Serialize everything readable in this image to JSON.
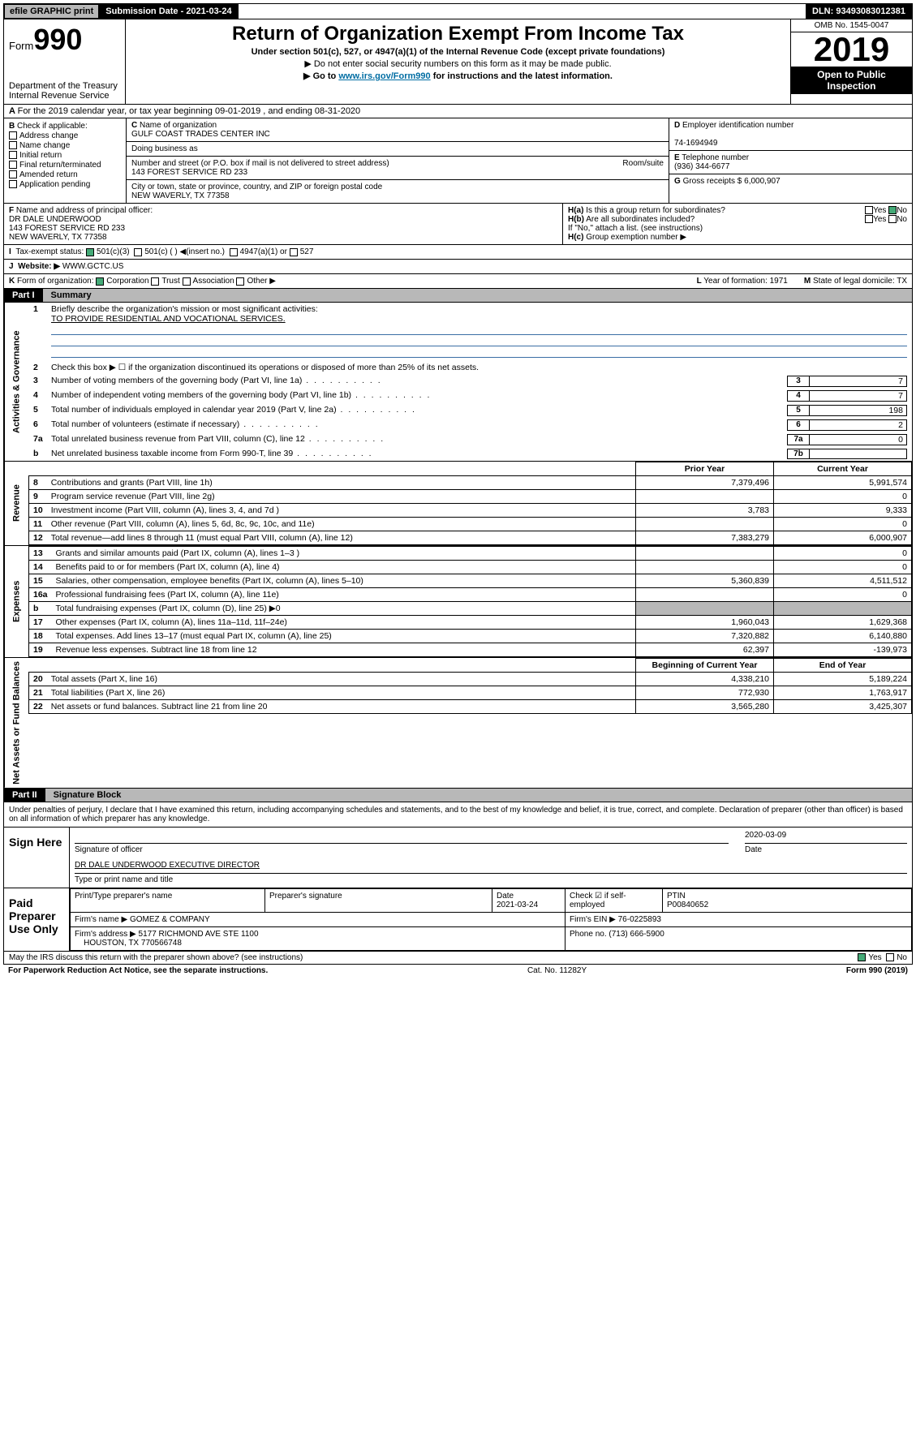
{
  "topbar": {
    "efile": "efile GRAPHIC print",
    "submission": "Submission Date - 2021-03-24",
    "dln": "DLN: 93493083012381"
  },
  "header": {
    "form_label": "Form",
    "form_number": "990",
    "dept": "Department of the Treasury",
    "irs": "Internal Revenue Service",
    "title": "Return of Organization Exempt From Income Tax",
    "sub1": "Under section 501(c), 527, or 4947(a)(1) of the Internal Revenue Code (except private foundations)",
    "sub2": "▶ Do not enter social security numbers on this form as it may be made public.",
    "sub3_pre": "▶ Go to ",
    "sub3_link": "www.irs.gov/Form990",
    "sub3_post": " for instructions and the latest information.",
    "omb": "OMB No. 1545-0047",
    "year": "2019",
    "public": "Open to Public Inspection"
  },
  "A": {
    "text": "For the 2019 calendar year, or tax year beginning 09-01-2019 , and ending 08-31-2020"
  },
  "B": {
    "label": "Check if applicable:",
    "items": [
      "Address change",
      "Name change",
      "Initial return",
      "Final return/terminated",
      "Amended return",
      "Application pending"
    ]
  },
  "C": {
    "name_label": "Name of organization",
    "name": "GULF COAST TRADES CENTER INC",
    "dba_label": "Doing business as",
    "addr_label": "Number and street (or P.O. box if mail is not delivered to street address)",
    "room_label": "Room/suite",
    "addr": "143 FOREST SERVICE RD 233",
    "city_label": "City or town, state or province, country, and ZIP or foreign postal code",
    "city": "NEW WAVERLY, TX 77358"
  },
  "D": {
    "label": "Employer identification number",
    "value": "74-1694949"
  },
  "E": {
    "label": "Telephone number",
    "value": "(936) 344-6677"
  },
  "G": {
    "label": "Gross receipts $",
    "value": "6,000,907"
  },
  "F": {
    "label": "Name and address of principal officer:",
    "name": "DR DALE UNDERWOOD",
    "addr1": "143 FOREST SERVICE RD 233",
    "addr2": "NEW WAVERLY, TX 77358"
  },
  "H": {
    "a": "Is this a group return for subordinates?",
    "b": "Are all subordinates included?",
    "b2": "If \"No,\" attach a list. (see instructions)",
    "c": "Group exemption number ▶"
  },
  "taxexempt": {
    "label": "Tax-exempt status:",
    "c501c3": "501(c)(3)",
    "c501c": "501(c) ( ) ◀(insert no.)",
    "c4947": "4947(a)(1) or",
    "c527": "527"
  },
  "J": {
    "label": "Website: ▶",
    "value": "WWW.GCTC.US"
  },
  "K": {
    "label": "Form of organization:",
    "corp": "Corporation",
    "trust": "Trust",
    "assoc": "Association",
    "other": "Other ▶",
    "L": "Year of formation: 1971",
    "M": "State of legal domicile: TX"
  },
  "partI": {
    "tab": "Part I",
    "label": "Summary"
  },
  "sum": {
    "q1_label": "Briefly describe the organization's mission or most significant activities:",
    "q1_value": "TO PROVIDE RESIDENTIAL AND VOCATIONAL SERVICES.",
    "q2": "Check this box ▶ ☐ if the organization discontinued its operations or disposed of more than 25% of its net assets.",
    "rows": [
      {
        "n": "3",
        "t": "Number of voting members of the governing body (Part VI, line 1a)",
        "box": "3",
        "v": "7"
      },
      {
        "n": "4",
        "t": "Number of independent voting members of the governing body (Part VI, line 1b)",
        "box": "4",
        "v": "7"
      },
      {
        "n": "5",
        "t": "Total number of individuals employed in calendar year 2019 (Part V, line 2a)",
        "box": "5",
        "v": "198"
      },
      {
        "n": "6",
        "t": "Total number of volunteers (estimate if necessary)",
        "box": "6",
        "v": "2"
      },
      {
        "n": "7a",
        "t": "Total unrelated business revenue from Part VIII, column (C), line 12",
        "box": "7a",
        "v": "0"
      },
      {
        "n": "b",
        "t": "Net unrelated business taxable income from Form 990-T, line 39",
        "box": "7b",
        "v": ""
      }
    ],
    "prior_hdr": "Prior Year",
    "curr_hdr": "Current Year"
  },
  "sidelabels": {
    "gov": "Activities & Governance",
    "rev": "Revenue",
    "exp": "Expenses",
    "net": "Net Assets or Fund Balances"
  },
  "revenue": {
    "rows": [
      {
        "n": "8",
        "t": "Contributions and grants (Part VIII, line 1h)",
        "p": "7,379,496",
        "c": "5,991,574"
      },
      {
        "n": "9",
        "t": "Program service revenue (Part VIII, line 2g)",
        "p": "",
        "c": "0"
      },
      {
        "n": "10",
        "t": "Investment income (Part VIII, column (A), lines 3, 4, and 7d )",
        "p": "3,783",
        "c": "9,333"
      },
      {
        "n": "11",
        "t": "Other revenue (Part VIII, column (A), lines 5, 6d, 8c, 9c, 10c, and 11e)",
        "p": "",
        "c": "0"
      },
      {
        "n": "12",
        "t": "Total revenue—add lines 8 through 11 (must equal Part VIII, column (A), line 12)",
        "p": "7,383,279",
        "c": "6,000,907"
      }
    ]
  },
  "expenses": {
    "rows": [
      {
        "n": "13",
        "t": "Grants and similar amounts paid (Part IX, column (A), lines 1–3 )",
        "p": "",
        "c": "0"
      },
      {
        "n": "14",
        "t": "Benefits paid to or for members (Part IX, column (A), line 4)",
        "p": "",
        "c": "0"
      },
      {
        "n": "15",
        "t": "Salaries, other compensation, employee benefits (Part IX, column (A), lines 5–10)",
        "p": "5,360,839",
        "c": "4,511,512"
      },
      {
        "n": "16a",
        "t": "Professional fundraising fees (Part IX, column (A), line 11e)",
        "p": "",
        "c": "0"
      },
      {
        "n": "b",
        "t": "Total fundraising expenses (Part IX, column (D), line 25) ▶0",
        "p": "—",
        "c": "—"
      },
      {
        "n": "17",
        "t": "Other expenses (Part IX, column (A), lines 11a–11d, 11f–24e)",
        "p": "1,960,043",
        "c": "1,629,368"
      },
      {
        "n": "18",
        "t": "Total expenses. Add lines 13–17 (must equal Part IX, column (A), line 25)",
        "p": "7,320,882",
        "c": "6,140,880"
      },
      {
        "n": "19",
        "t": "Revenue less expenses. Subtract line 18 from line 12",
        "p": "62,397",
        "c": "-139,973"
      }
    ]
  },
  "netassets": {
    "hdr_p": "Beginning of Current Year",
    "hdr_c": "End of Year",
    "rows": [
      {
        "n": "20",
        "t": "Total assets (Part X, line 16)",
        "p": "4,338,210",
        "c": "5,189,224"
      },
      {
        "n": "21",
        "t": "Total liabilities (Part X, line 26)",
        "p": "772,930",
        "c": "1,763,917"
      },
      {
        "n": "22",
        "t": "Net assets or fund balances. Subtract line 21 from line 20",
        "p": "3,565,280",
        "c": "3,425,307"
      }
    ]
  },
  "partII": {
    "tab": "Part II",
    "label": "Signature Block"
  },
  "sig": {
    "decl": "Under penalties of perjury, I declare that I have examined this return, including accompanying schedules and statements, and to the best of my knowledge and belief, it is true, correct, and complete. Declaration of preparer (other than officer) is based on all information of which preparer has any knowledge.",
    "sign_here": "Sign Here",
    "sig_officer": "Signature of officer",
    "date": "2020-03-09",
    "date_label": "Date",
    "typed": "DR DALE UNDERWOOD EXECUTIVE DIRECTOR",
    "typed_label": "Type or print name and title"
  },
  "paid": {
    "label": "Paid Preparer Use Only",
    "h_name": "Print/Type preparer's name",
    "h_sig": "Preparer's signature",
    "h_date": "Date",
    "date": "2021-03-24",
    "h_self": "Check ☑ if self-employed",
    "h_ptin": "PTIN",
    "ptin": "P00840652",
    "firm_name_l": "Firm's name ▶",
    "firm_name": "GOMEZ & COMPANY",
    "firm_ein_l": "Firm's EIN ▶",
    "firm_ein": "76-0225893",
    "firm_addr_l": "Firm's address ▶",
    "firm_addr": "5177 RICHMOND AVE STE 1100",
    "firm_city": "HOUSTON, TX 770566748",
    "phone_l": "Phone no.",
    "phone": "(713) 666-5900"
  },
  "discuss": {
    "text": "May the IRS discuss this return with the preparer shown above? (see instructions)",
    "yes": "Yes",
    "no": "No"
  },
  "footer": {
    "left": "For Paperwork Reduction Act Notice, see the separate instructions.",
    "center": "Cat. No. 11282Y",
    "right": "Form 990 (2019)"
  }
}
